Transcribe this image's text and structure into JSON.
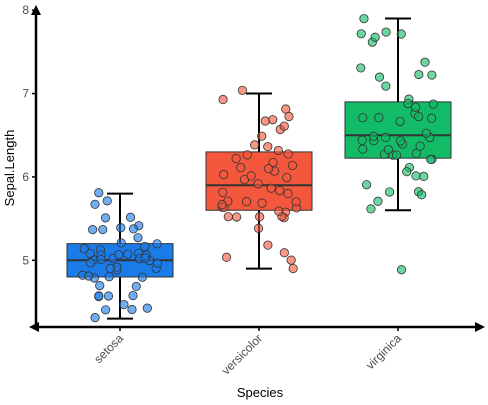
{
  "chart_data": {
    "type": "boxplot",
    "title": "",
    "xlabel": "Species",
    "ylabel": "Sepal.Length",
    "categories": [
      "setosa",
      "versicolor",
      "virginica"
    ],
    "ylim": [
      4.2,
      8.05
    ],
    "yticks": [
      5,
      6,
      7,
      8
    ],
    "grid": false,
    "legend": "none",
    "colors": {
      "setosa": "#1a7ce8",
      "versicolor": "#f4573b",
      "virginica": "#12bb66"
    },
    "boxes": [
      {
        "name": "setosa",
        "min": 4.3,
        "q1": 4.8,
        "median": 5.0,
        "q3": 5.2,
        "max": 5.8
      },
      {
        "name": "versicolor",
        "min": 4.9,
        "q1": 5.6,
        "median": 5.9,
        "q3": 6.3,
        "max": 7.0
      },
      {
        "name": "virginica",
        "min": 5.6,
        "q1": 6.225,
        "median": 6.5,
        "q3": 6.9,
        "max": 7.9
      }
    ],
    "points": {
      "setosa": [
        5.1,
        4.9,
        4.7,
        4.6,
        5.0,
        5.4,
        4.6,
        5.0,
        4.4,
        4.9,
        5.4,
        4.8,
        4.8,
        4.3,
        5.8,
        5.7,
        5.4,
        5.1,
        5.7,
        5.1,
        5.4,
        5.1,
        4.6,
        5.1,
        4.8,
        5.0,
        5.0,
        5.2,
        5.2,
        4.7,
        4.8,
        5.4,
        5.2,
        5.5,
        4.9,
        5.0,
        5.5,
        4.9,
        4.4,
        5.1,
        5.0,
        4.5,
        4.4,
        5.0,
        5.1,
        4.8,
        5.1,
        4.6,
        5.3,
        5.0
      ],
      "versicolor": [
        7.0,
        6.4,
        6.9,
        5.5,
        6.5,
        5.7,
        6.3,
        4.9,
        6.6,
        5.2,
        5.0,
        5.9,
        6.0,
        6.1,
        5.6,
        6.7,
        5.6,
        5.8,
        6.2,
        5.6,
        5.9,
        6.1,
        6.3,
        6.1,
        6.4,
        6.6,
        6.8,
        6.7,
        6.0,
        5.7,
        5.5,
        5.5,
        5.8,
        6.0,
        5.4,
        6.0,
        6.7,
        6.3,
        5.6,
        5.5,
        5.5,
        6.1,
        5.8,
        5.0,
        5.6,
        5.7,
        5.7,
        6.2,
        5.1,
        5.7
      ],
      "virginica": [
        6.3,
        5.8,
        7.1,
        6.3,
        6.5,
        7.6,
        4.9,
        7.3,
        6.7,
        7.2,
        6.5,
        6.4,
        6.8,
        5.7,
        5.8,
        6.4,
        6.5,
        7.7,
        7.7,
        6.0,
        6.9,
        5.6,
        7.7,
        6.3,
        6.7,
        7.2,
        6.2,
        6.1,
        6.4,
        7.2,
        7.4,
        7.9,
        6.4,
        6.3,
        6.1,
        7.7,
        6.3,
        6.4,
        6.0,
        6.9,
        6.7,
        6.9,
        5.8,
        6.8,
        6.7,
        6.7,
        6.3,
        6.5,
        6.2,
        5.9
      ]
    }
  }
}
